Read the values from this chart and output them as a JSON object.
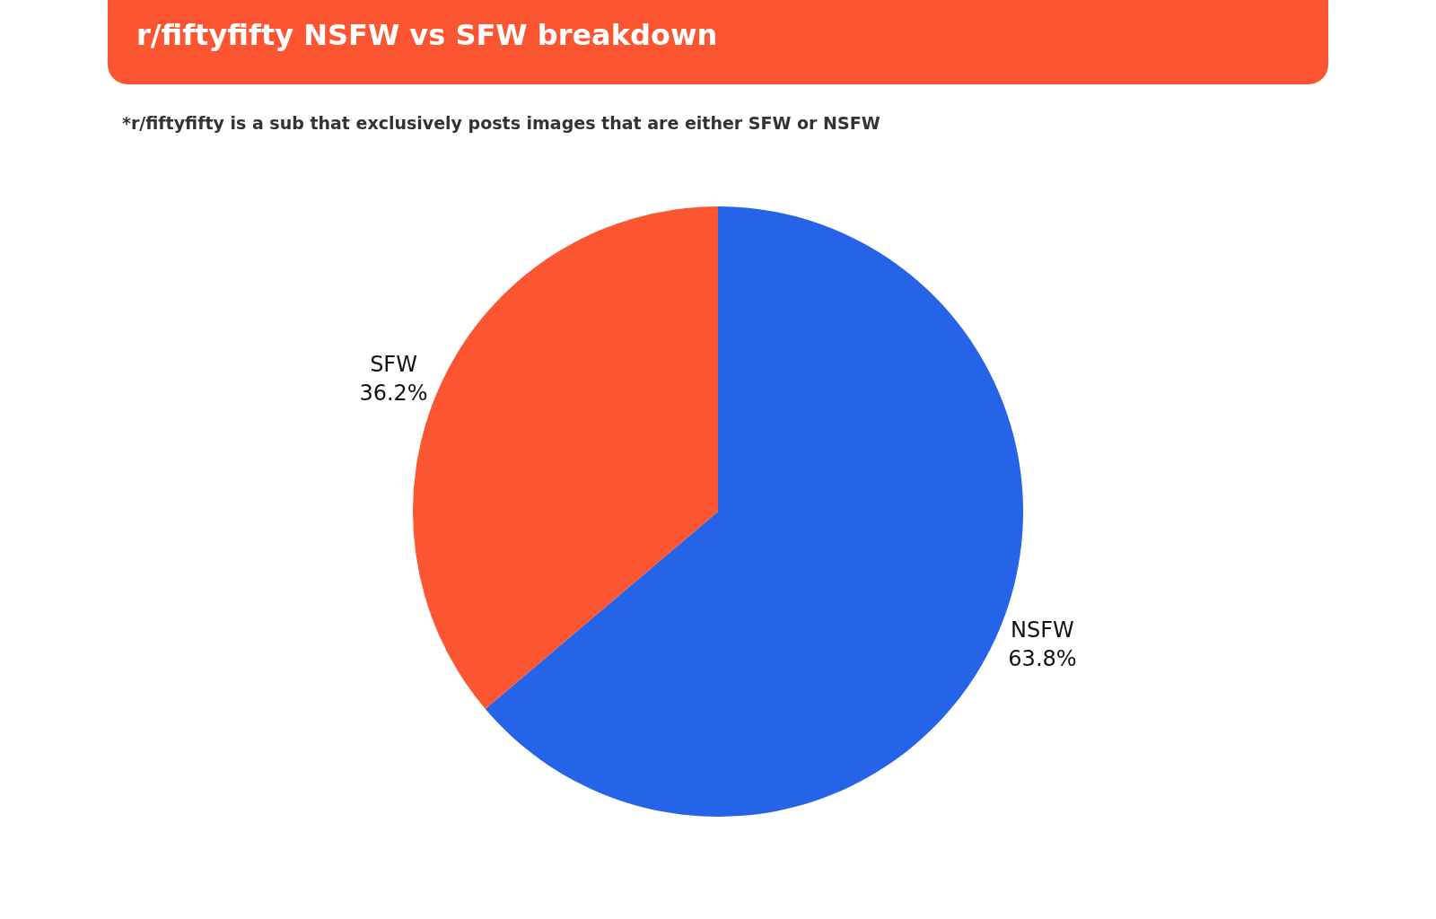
{
  "chart_data": {
    "type": "pie",
    "title": "r/fiftyfifty NSFW vs SFW breakdown",
    "subtitle": "*r/fiftyfifty is a sub that exclusively posts images that are either SFW or NSFW",
    "categories": [
      "NSFW",
      "SFW"
    ],
    "values": [
      63.8,
      36.2
    ],
    "value_labels": [
      "63.8%",
      "36.2%"
    ],
    "colors": [
      "#2563e8",
      "#fb5631"
    ],
    "legend": false
  }
}
